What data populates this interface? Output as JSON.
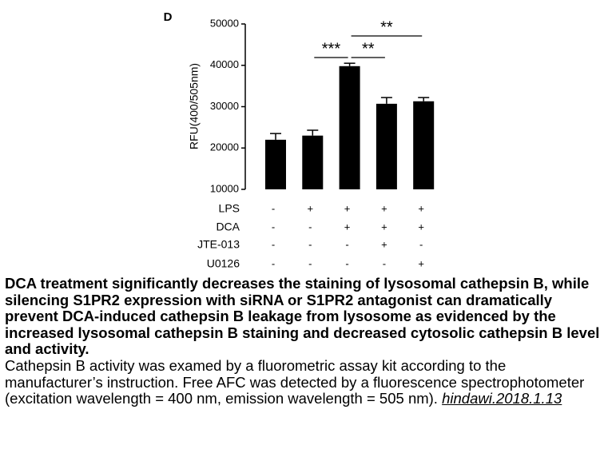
{
  "chart_data": {
    "type": "bar",
    "panel_label": "D",
    "ylabel": "RFU(400/505nm)",
    "categories": [
      null,
      null,
      null,
      null,
      null
    ],
    "values": [
      22000,
      23000,
      39800,
      30700,
      31300
    ],
    "errors": [
      1500,
      1300,
      700,
      1500,
      900
    ],
    "color": "#000000",
    "ylim": [
      10000,
      50000
    ],
    "yticks": [
      10000,
      20000,
      30000,
      40000,
      50000
    ],
    "treatments": [
      {
        "name": "LPS",
        "signs": [
          "-",
          "+",
          "+",
          "+",
          "+"
        ]
      },
      {
        "name": "DCA",
        "signs": [
          "-",
          "-",
          "+",
          "+",
          "+"
        ]
      },
      {
        "name": "JTE-013",
        "signs": [
          "-",
          "-",
          "-",
          "+",
          "-"
        ]
      },
      {
        "name": "U0126",
        "signs": [
          "-",
          "-",
          "-",
          "-",
          "+"
        ]
      }
    ],
    "annotations": [
      "***",
      "**",
      "**"
    ]
  },
  "caption": {
    "bold": "DCA treatment significantly decreases the staining of lysosomal cathepsin B, while silencing S1PR2 expression with siRNA or S1PR2 antagonist can dramatically prevent DCA-induced cathepsin B leakage from lysosome as evidenced by the increased lysosomal cathepsin B staining and decreased cytosolic cathepsin B level and activity.",
    "text": "Cathepsin B activity was examed by a fluorometric assay kit according to the manufacturer’s instruction. Free AFC was detected by a fluorescence spectrophotometer (excitation wavelength = 400 nm, emission wavelength = 505 nm).",
    "link": "hindawi.2018.1.13"
  }
}
